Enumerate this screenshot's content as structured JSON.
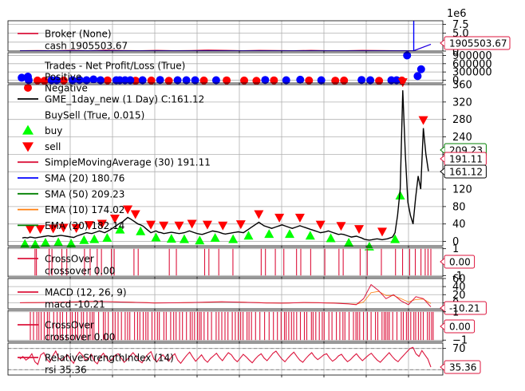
{
  "exponent_label": "1e6",
  "colors": {
    "crimson": "#dc143c",
    "blue": "#0000ff",
    "green": "#008000",
    "orange": "#ff7f0e",
    "black": "#000000",
    "lime": "#00ff00",
    "red": "#ff0000",
    "grid": "#b0b0b0"
  },
  "chart_data": [
    {
      "type": "line",
      "panel": "broker",
      "legend": [
        {
          "name": "Broker (None)",
          "color": "#dc143c",
          "marker": "line"
        },
        {
          "name": "cash 1905503.67",
          "color": "",
          "marker": "none"
        }
      ],
      "last_value_label": "1905503.67",
      "ylim": [
        0,
        8.5
      ],
      "yticks": [
        0,
        2.5,
        5.0,
        7.5
      ],
      "ytick_labels": [
        "0",
        "2.5",
        "5.0",
        "7.5"
      ],
      "series": [
        {
          "name": "value",
          "color": "#dc143c",
          "values": [
            0.1,
            0.15,
            0.1,
            0.2,
            0.1,
            0.25,
            0.15,
            0.1,
            0.2,
            0.1,
            0.15,
            0.3,
            0.2,
            0.1,
            0.2,
            0.15,
            0.1,
            0.2,
            0.1,
            0.1,
            0.2,
            0.15,
            0.1,
            0.1,
            1.9
          ]
        },
        {
          "name": "cash",
          "color": "#0000ff",
          "spike_index": 23,
          "spike_value": 8.5,
          "values": [
            0.1,
            0.1,
            0.1,
            0.1,
            0.1,
            0.1,
            0.1,
            0.1,
            0.1,
            0.1,
            0.1,
            0.1,
            0.1,
            0.1,
            0.1,
            0.1,
            0.1,
            0.1,
            0.1,
            0.1,
            0.1,
            0.1,
            0.1,
            0.1,
            1.9
          ]
        }
      ]
    },
    {
      "type": "scatter",
      "panel": "trades",
      "legend": [
        {
          "name": "Trades - Net Profit/Loss (True)",
          "color": "",
          "marker": "none"
        },
        {
          "name": "Positive",
          "color": "#0000ff",
          "marker": "circle"
        },
        {
          "name": "Negative",
          "color": "#ff0000",
          "marker": "circle"
        }
      ],
      "ylim": [
        -100000,
        1000000
      ],
      "yticks": [
        0,
        300000,
        600000,
        900000
      ],
      "ytick_labels": [
        "0",
        "300000",
        "600000",
        "900000"
      ],
      "positive": {
        "x": [
          1,
          5,
          18,
          21,
          30,
          34,
          38,
          42,
          46,
          55,
          57,
          60,
          63,
          70,
          80,
          90,
          95,
          100,
          112,
          140,
          152,
          160,
          172,
          195,
          200,
          212,
          215,
          221,
          227,
          229
        ],
        "y": [
          90000,
          0,
          0,
          0,
          0,
          10000,
          0,
          30000,
          0,
          0,
          0,
          0,
          0,
          0,
          10000,
          0,
          0,
          0,
          0,
          10000,
          0,
          20000,
          0,
          10000,
          0,
          0,
          0,
          900000,
          150000,
          400000
        ]
      },
      "negative": {
        "x": [
          10,
          14,
          25,
          50,
          66,
          75,
          85,
          105,
          118,
          128,
          135,
          145,
          165,
          180,
          185,
          205,
          218
        ],
        "y": [
          -10000,
          -20000,
          -10000,
          -5000,
          -15000,
          -10000,
          -20000,
          -10000,
          -5000,
          -10000,
          -20000,
          -5000,
          -10000,
          -15000,
          -10000,
          -20000,
          -10000
        ]
      }
    },
    {
      "type": "line",
      "panel": "price",
      "legend": [
        {
          "name": "GME_1day_new (1 Day) C:161.12",
          "color": "#000000",
          "marker": "line"
        },
        {
          "name": "BuySell (True, 0.015)",
          "color": "",
          "marker": "none"
        },
        {
          "name": "buy",
          "color": "#00ff00",
          "marker": "triangle-up"
        },
        {
          "name": "sell",
          "color": "#ff0000",
          "marker": "triangle-down"
        },
        {
          "name": "SimpleMovingAverage (30) 191.11",
          "color": "#dc143c",
          "marker": "line"
        },
        {
          "name": "SMA (20) 180.76",
          "color": "#0000ff",
          "marker": "line"
        },
        {
          "name": "SMA (50) 209.23",
          "color": "#008000",
          "marker": "line"
        },
        {
          "name": "EMA (10) 174.02",
          "color": "#ff7f0e",
          "marker": "line"
        },
        {
          "name": "EMA (20) 182.14",
          "color": "#008000",
          "marker": "line"
        }
      ],
      "value_labels": [
        {
          "text": "209.23",
          "value": 209.23,
          "color": "#008000"
        },
        {
          "text": "191.11",
          "value": 191.11,
          "color": "#dc143c"
        },
        {
          "text": "161.12",
          "value": 161.12,
          "color": "#000000"
        }
      ],
      "ylim": [
        -10,
        360
      ],
      "yticks": [
        0,
        40,
        80,
        120,
        160,
        200,
        240,
        280,
        320,
        360
      ],
      "ytick_labels": [
        "0",
        "40",
        "80",
        "120",
        "160",
        "200",
        "240",
        "280",
        "320",
        "360"
      ],
      "close": [
        8,
        9,
        8,
        10,
        9,
        8,
        9,
        10,
        11,
        12,
        13,
        12,
        11,
        12,
        13,
        14,
        13,
        12,
        11,
        10,
        9,
        12,
        14,
        16,
        18,
        20,
        19,
        18,
        20,
        22,
        24,
        22,
        20,
        23,
        26,
        30,
        34,
        38,
        42,
        45,
        50,
        55,
        52,
        48,
        44,
        40,
        38,
        35,
        30,
        25,
        20,
        22,
        24,
        21,
        20,
        18,
        19,
        20,
        21,
        20,
        19,
        18,
        19,
        20,
        22,
        24,
        22,
        20,
        18,
        17,
        16,
        18,
        20,
        22,
        24,
        23,
        22,
        20,
        18,
        17,
        18,
        19,
        20,
        21,
        22,
        21,
        20,
        24,
        28,
        32,
        36,
        40,
        44,
        40,
        36,
        34,
        32,
        30,
        32,
        34,
        36,
        38,
        36,
        34,
        32,
        30,
        32,
        34,
        36,
        34,
        32,
        30,
        28,
        26,
        24,
        22,
        20,
        21,
        22,
        24,
        22,
        20,
        18,
        16,
        17,
        16,
        14,
        12,
        10,
        11,
        12,
        10,
        8,
        5,
        4,
        3,
        4,
        5,
        6,
        5,
        4,
        5,
        6,
        8,
        10,
        20,
        60,
        120,
        347,
        200,
        90,
        60,
        40,
        100,
        150,
        120,
        260,
        200,
        161
      ],
      "buy_points": [
        1,
        5,
        9,
        14,
        19,
        24,
        28,
        33,
        38,
        46,
        52,
        58,
        63,
        69,
        75,
        82,
        88,
        96,
        104,
        112,
        120,
        127,
        135,
        145,
        147
      ],
      "sell_points": [
        3,
        7,
        12,
        16,
        21,
        26,
        31,
        36,
        41,
        44,
        50,
        55,
        61,
        66,
        72,
        78,
        85,
        92,
        100,
        108,
        116,
        124,
        131,
        140,
        148,
        156
      ]
    },
    {
      "type": "line",
      "panel": "crossover_1",
      "legend": [
        {
          "name": "CrossOver",
          "color": "#dc143c",
          "marker": "line"
        },
        {
          "name": "crossover 0.00",
          "color": "",
          "marker": "none"
        }
      ],
      "last_value_label": "0.00",
      "ylim": [
        -1.1,
        1.1
      ],
      "yticks": [
        -1,
        1
      ],
      "ytick_labels": [
        "-1",
        "1"
      ],
      "cross_positions": [
        10,
        12,
        30,
        34,
        48,
        55,
        80,
        88,
        98,
        104,
        118,
        122,
        150,
        156,
        200,
        210,
        250,
        256,
        270,
        290,
        330,
        336,
        350,
        362,
        380,
        386,
        400,
        420,
        440,
        446,
        470,
        480,
        500,
        520,
        530,
        540,
        548,
        556,
        562,
        566,
        570
      ]
    },
    {
      "type": "line",
      "panel": "macd",
      "legend": [
        {
          "name": "MACD (12, 26, 9)",
          "color": "#dc143c",
          "marker": "line"
        },
        {
          "name": "macd -10.21",
          "color": "",
          "marker": "none"
        }
      ],
      "last_value_label": "-10.21",
      "ylim": [
        -15,
        60
      ],
      "yticks": [
        0,
        20,
        40,
        60
      ],
      "ytick_labels": [
        "0",
        "20",
        "40",
        "60"
      ],
      "macd": [
        0,
        0.2,
        0.4,
        0.5,
        0.8,
        1,
        1.5,
        2,
        2.5,
        3,
        3.5,
        3,
        2.5,
        2,
        1.5,
        1,
        0.5,
        0,
        -0.5,
        -0.4,
        -0.2,
        0,
        0.3,
        0.5,
        1,
        1.5,
        2,
        2.5,
        2,
        1.5,
        1,
        0.5,
        0,
        -0.5,
        -0.8,
        -1,
        -0.5,
        0,
        0.5,
        0.2,
        0,
        -0.5,
        -1,
        -2,
        -3,
        -5,
        10,
        45,
        30,
        10,
        20,
        5,
        -5,
        15,
        10,
        -10
      ],
      "signal": [
        0,
        0.1,
        0.3,
        0.4,
        0.6,
        0.8,
        1.2,
        1.6,
        2,
        2.5,
        3,
        2.9,
        2.6,
        2.2,
        1.8,
        1.3,
        0.8,
        0.3,
        -0.1,
        -0.3,
        -0.2,
        -0.1,
        0.1,
        0.3,
        0.7,
        1.1,
        1.6,
        2,
        2,
        1.8,
        1.3,
        0.8,
        0.3,
        -0.2,
        -0.5,
        -0.7,
        -0.5,
        -0.1,
        0.3,
        0.2,
        0.1,
        -0.2,
        -0.6,
        -1.4,
        -2.3,
        -3.8,
        2,
        25,
        28,
        18,
        18,
        10,
        2,
        8,
        9,
        -2
      ]
    },
    {
      "type": "line",
      "panel": "crossover_2",
      "legend": [
        {
          "name": "CrossOver",
          "color": "#dc143c",
          "marker": "line"
        },
        {
          "name": "crossover 0.00",
          "color": "",
          "marker": "none"
        }
      ],
      "last_value_label": "0.00",
      "ylim": [
        -1.1,
        1.1
      ],
      "yticks": [
        -1,
        1
      ],
      "ytick_labels": [
        "−1",
        "1"
      ],
      "density": "dense"
    },
    {
      "type": "line",
      "panel": "rsi",
      "legend": [
        {
          "name": "RelativeStrengthIndex (14)",
          "color": "#dc143c",
          "marker": "line"
        },
        {
          "name": "rsi 35.36",
          "color": "",
          "marker": "none"
        }
      ],
      "last_value_label": "35.36",
      "ylim": [
        20,
        80
      ],
      "yticks": [
        30,
        70
      ],
      "ytick_labels": [
        "30",
        "70"
      ],
      "hlines": [
        30,
        70
      ],
      "values": [
        50,
        55,
        48,
        52,
        60,
        45,
        40,
        58,
        62,
        50,
        44,
        56,
        65,
        52,
        47,
        53,
        58,
        49,
        42,
        55,
        63,
        57,
        48,
        51,
        59,
        46,
        41,
        54,
        61,
        53,
        45,
        50,
        57,
        60,
        52,
        44,
        49,
        56,
        62,
        55,
        47,
        43,
        52,
        59,
        64,
        50,
        45,
        53,
        58,
        51,
        46,
        55,
        60,
        48,
        42,
        50,
        57,
        63,
        54,
        46,
        52,
        58,
        49,
        44,
        51,
        56,
        61,
        53,
        47,
        55,
        62,
        58,
        50,
        45,
        52,
        59,
        54,
        48,
        43,
        50,
        56,
        60,
        52,
        47,
        54,
        61,
        65,
        57,
        50,
        45,
        52,
        58,
        63,
        55,
        48,
        44,
        51,
        57,
        62,
        54,
        49,
        53,
        58,
        60,
        52,
        46,
        50,
        56,
        59,
        51,
        45,
        49,
        55,
        60,
        53,
        47,
        52,
        57,
        61,
        54,
        48,
        44,
        50,
        56,
        62,
        55,
        49,
        45,
        52,
        58,
        64,
        70,
        72,
        60,
        55,
        66,
        58,
        50,
        35
      ]
    }
  ]
}
